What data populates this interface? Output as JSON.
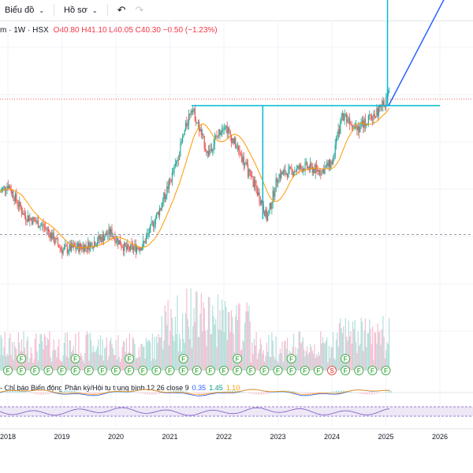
{
  "toolbar": {
    "chart_label": "Biểu đồ",
    "profile_label": "Hồ sơ",
    "undo_icon": "undo-icon",
    "redo_icon": "redo-icon"
  },
  "legend": {
    "symbol": "m · 1W · HSX",
    "open": "O40.80",
    "high": "H41.10",
    "low": "L40.05",
    "close": "C40.30",
    "change": "−0.50 (−1.23%)"
  },
  "indicator": {
    "label": "- Chỉ báo Biến động Phân kỳ/Hội tụ trung bình 12 26 close 9",
    "v1": "0.35",
    "v2": "1.45",
    "v3": "1.10"
  },
  "colors": {
    "up": "#26a69a",
    "down": "#ef5350",
    "ma": "#ff9800",
    "resistance": "#00bcd4",
    "arrow": "#2962ff",
    "rsi": "#7e57c2",
    "badge": "#4caf50"
  },
  "chart_data": {
    "type": "candlestick",
    "x_axis_labels": [
      "2018",
      "2019",
      "2020",
      "2021",
      "2022",
      "2023",
      "2024",
      "2025",
      "2026"
    ],
    "price_path": [
      {
        "t": 2017.5,
        "p": 24
      },
      {
        "t": 2018.0,
        "p": 30
      },
      {
        "t": 2018.3,
        "p": 23
      },
      {
        "t": 2018.7,
        "p": 20
      },
      {
        "t": 2019.0,
        "p": 15
      },
      {
        "t": 2019.5,
        "p": 16
      },
      {
        "t": 2019.9,
        "p": 19
      },
      {
        "t": 2020.2,
        "p": 15
      },
      {
        "t": 2020.5,
        "p": 16
      },
      {
        "t": 2020.8,
        "p": 24
      },
      {
        "t": 2021.1,
        "p": 34
      },
      {
        "t": 2021.4,
        "p": 48
      },
      {
        "t": 2021.7,
        "p": 37
      },
      {
        "t": 2022.0,
        "p": 44
      },
      {
        "t": 2022.3,
        "p": 37
      },
      {
        "t": 2022.7,
        "p": 26
      },
      {
        "t": 2022.8,
        "p": 22
      },
      {
        "t": 2023.0,
        "p": 32
      },
      {
        "t": 2023.5,
        "p": 34
      },
      {
        "t": 2023.8,
        "p": 33
      },
      {
        "t": 2024.0,
        "p": 35
      },
      {
        "t": 2024.2,
        "p": 46
      },
      {
        "t": 2024.5,
        "p": 43
      },
      {
        "t": 2024.8,
        "p": 46
      },
      {
        "t": 2025.0,
        "p": 49
      },
      {
        "t": 2025.1,
        "p": 53
      }
    ],
    "resistance_level": 48,
    "projection_target": 80,
    "last_price": 40.3,
    "annotations": [
      "F",
      "S"
    ]
  }
}
